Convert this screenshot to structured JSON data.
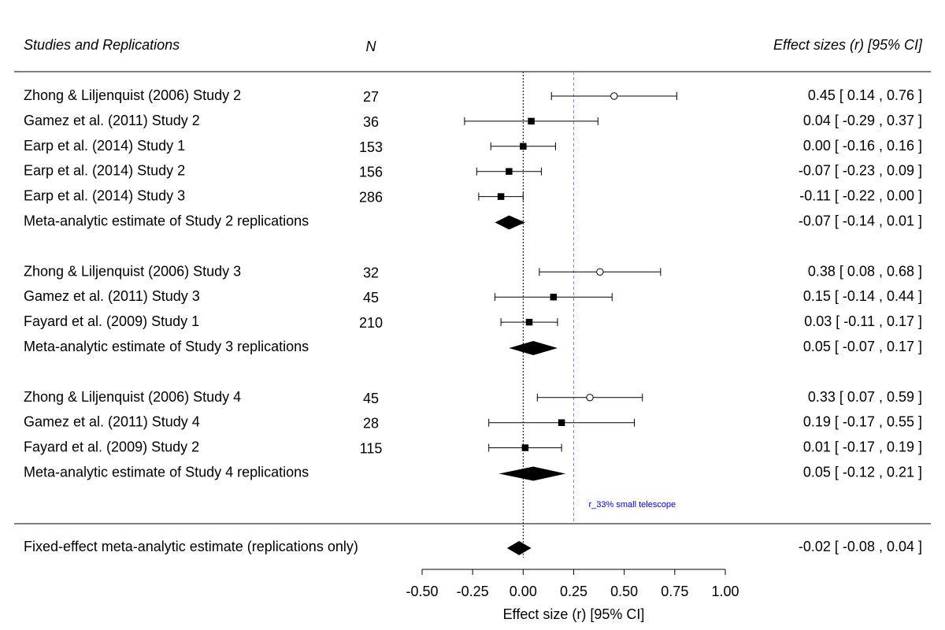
{
  "chart_data": {
    "type": "forest",
    "headers": {
      "studies": "Studies and Replications",
      "n": "N",
      "effects": "Effect sizes (r) [95% CI]"
    },
    "xlabel": "Effect size (r) [95% CI]",
    "xlim": [
      -0.5,
      1.0
    ],
    "xticks": [
      "-0.50",
      "-0.25",
      "0.00",
      "0.25",
      "0.50",
      "0.75",
      "1.00"
    ],
    "null_line": 0.0,
    "reference_line": {
      "value": 0.25,
      "label": "r_33% small telescope",
      "color": "#7f7fff",
      "label_color": "#0000cc"
    },
    "rows": [
      {
        "kind": "study",
        "marker": "open",
        "label": "Zhong & Liljenquist (2006) Study 2",
        "n": "27",
        "est": 0.45,
        "lo": 0.14,
        "hi": 0.76,
        "text": "0.45 [  0.14 , 0.76 ]"
      },
      {
        "kind": "study",
        "marker": "filled",
        "label": "Gamez et al. (2011) Study 2",
        "n": "36",
        "est": 0.04,
        "lo": -0.29,
        "hi": 0.37,
        "text": "0.04 [ -0.29 , 0.37 ]"
      },
      {
        "kind": "study",
        "marker": "filled",
        "label": "Earp et al. (2014) Study 1",
        "n": "153",
        "est": 0.0,
        "lo": -0.16,
        "hi": 0.16,
        "text": "0.00 [ -0.16 , 0.16 ]"
      },
      {
        "kind": "study",
        "marker": "filled",
        "label": "Earp et al. (2014) Study 2",
        "n": "156",
        "est": -0.07,
        "lo": -0.23,
        "hi": 0.09,
        "text": "-0.07 [ -0.23 , 0.09 ]"
      },
      {
        "kind": "study",
        "marker": "filled",
        "label": "Earp et al. (2014) Study 3",
        "n": "286",
        "est": -0.11,
        "lo": -0.22,
        "hi": 0.0,
        "text": "-0.11 [ -0.22 , 0.00 ]"
      },
      {
        "kind": "summary",
        "label": "Meta-analytic estimate of Study 2 replications",
        "n": "",
        "est": -0.07,
        "lo": -0.14,
        "hi": 0.01,
        "text": "-0.07 [ -0.14 , 0.01 ]"
      },
      {
        "kind": "gap"
      },
      {
        "kind": "study",
        "marker": "open",
        "label": "Zhong & Liljenquist (2006) Study 3",
        "n": "32",
        "est": 0.38,
        "lo": 0.08,
        "hi": 0.68,
        "text": "0.38 [  0.08 , 0.68 ]"
      },
      {
        "kind": "study",
        "marker": "filled",
        "label": "Gamez et al. (2011) Study 3",
        "n": "45",
        "est": 0.15,
        "lo": -0.14,
        "hi": 0.44,
        "text": "0.15 [ -0.14 , 0.44 ]"
      },
      {
        "kind": "study",
        "marker": "filled",
        "label": "Fayard et al. (2009) Study 1",
        "n": "210",
        "est": 0.03,
        "lo": -0.11,
        "hi": 0.17,
        "text": "0.03 [ -0.11 , 0.17 ]"
      },
      {
        "kind": "summary",
        "label": "Meta-analytic estimate of Study 3 replications",
        "n": "",
        "est": 0.05,
        "lo": -0.07,
        "hi": 0.17,
        "text": "0.05 [ -0.07 , 0.17 ]"
      },
      {
        "kind": "gap"
      },
      {
        "kind": "study",
        "marker": "open",
        "label": "Zhong & Liljenquist (2006) Study 4",
        "n": "45",
        "est": 0.33,
        "lo": 0.07,
        "hi": 0.59,
        "text": "0.33 [  0.07 , 0.59 ]"
      },
      {
        "kind": "study",
        "marker": "filled",
        "label": "Gamez et al. (2011) Study 4",
        "n": "28",
        "est": 0.19,
        "lo": -0.17,
        "hi": 0.55,
        "text": "0.19 [ -0.17 , 0.55 ]"
      },
      {
        "kind": "study",
        "marker": "filled",
        "label": "Fayard et al. (2009) Study 2",
        "n": "115",
        "est": 0.01,
        "lo": -0.17,
        "hi": 0.19,
        "text": "0.01 [ -0.17 , 0.19 ]"
      },
      {
        "kind": "summary",
        "label": "Meta-analytic estimate of Study 4 replications",
        "n": "",
        "est": 0.05,
        "lo": -0.12,
        "hi": 0.21,
        "text": "0.05 [ -0.12 , 0.21 ]"
      }
    ],
    "overall": {
      "label": "Fixed-effect meta-analytic estimate (replications only)",
      "est": -0.02,
      "lo": -0.08,
      "hi": 0.04,
      "text": "-0.02 [ -0.08 , 0.04 ]"
    }
  }
}
